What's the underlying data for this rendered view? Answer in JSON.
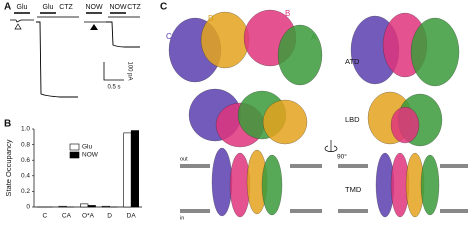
{
  "panel_labels": [
    "A",
    "B",
    "C"
  ],
  "panel_a": {
    "labels": [
      "Glu",
      "Glu",
      "CTZ",
      "NOW",
      "NOW",
      "CTZ"
    ],
    "scale_y": "100 pA",
    "scale_x": "0.5 s"
  },
  "panel_c": {
    "subunits": [
      "C",
      "D",
      "B",
      "A"
    ],
    "domains": [
      "ATD",
      "LBD",
      "TMD"
    ],
    "rotation": "90°",
    "membrane": [
      "out",
      "in"
    ]
  },
  "chart_data": {
    "type": "bar",
    "y_label": "State Occupancy",
    "categories": [
      "C",
      "CA",
      "O*A",
      "D",
      "DA"
    ],
    "series": [
      {
        "name": "Glu",
        "color": "#ffffff",
        "values": [
          0.0,
          0.01,
          0.04,
          0.01,
          0.95
        ]
      },
      {
        "name": "NOW",
        "color": "#000000",
        "values": [
          0.0,
          0.0,
          0.02,
          0.0,
          0.98
        ]
      }
    ],
    "ylim": [
      0,
      1
    ],
    "yticks": [
      0,
      0.2,
      0.4,
      0.6,
      0.8,
      {
        "value": 1,
        "label": "1.0"
      }
    ],
    "legend": "top"
  }
}
